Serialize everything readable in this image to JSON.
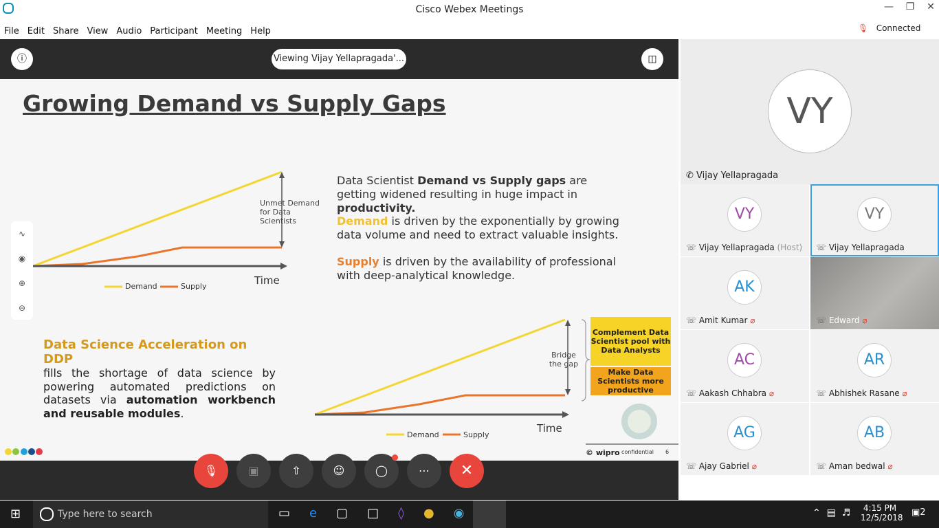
{
  "window": {
    "title": "Cisco Webex Meetings",
    "status": "Connected"
  },
  "menu": [
    "File",
    "Edit",
    "Share",
    "View",
    "Audio",
    "Participant",
    "Meeting",
    "Help"
  ],
  "share_bar": {
    "viewing": "Viewing Vijay Yellapragada'..."
  },
  "slide": {
    "title": "Growing Demand vs Supply Gaps",
    "chart1": {
      "legend": [
        "Demand",
        "Supply"
      ],
      "x_label": "Time",
      "annotation": "Unmet Demand for Data Scientists"
    },
    "points": [
      [
        "Data Scientist ",
        "Demand vs Supply gaps",
        " are getting widened resulting in huge impact in ",
        "productivity."
      ],
      [
        "Demand",
        " is driven by the exponentially by growing data volume and need to extract valuable insights."
      ],
      [
        "Supply",
        " is driven by the availability of professional with deep-analytical knowledge."
      ]
    ],
    "ddp": {
      "heading": "Data Science Acceleration on DDP",
      "body": [
        "fills the shortage of data science by powering automated predictions on datasets via ",
        "automation workbench and reusable modules",
        "."
      ]
    },
    "chart2": {
      "legend": [
        "Demand",
        "Supply"
      ],
      "x_label": "Time",
      "annotation": "Bridge the gap",
      "boxes": [
        "Complement Data Scientist pool with Data Analysts",
        "Make Data Scientists more productive"
      ]
    },
    "footer": {
      "brand": "© wipro",
      "label": "confidential",
      "page": "6"
    }
  },
  "active_speaker": {
    "initials": "VY",
    "name": "Vijay Yellapragada"
  },
  "participants": [
    {
      "initials": "VY",
      "name": "Vijay Yellapragada",
      "role": "(Host)"
    },
    {
      "initials": "VY",
      "name": "Vijay Yellapragada"
    },
    {
      "initials": "AK",
      "name": "Amit Kumar"
    },
    {
      "name": "Edward"
    },
    {
      "initials": "AC",
      "name": "Aakash Chhabra"
    },
    {
      "initials": "AR",
      "name": "Abhishek Rasane"
    },
    {
      "initials": "AG",
      "name": "Ajay Gabriel"
    },
    {
      "initials": "AB",
      "name": "Aman bedwal"
    }
  ],
  "taskbar": {
    "search": "Type here to search",
    "time": "4:15 PM",
    "date": "12/5/2018",
    "notifications": "2"
  }
}
